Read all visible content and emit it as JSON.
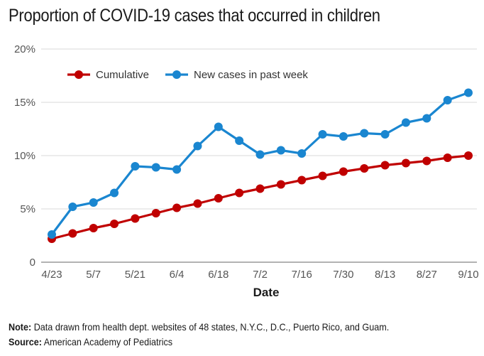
{
  "title": "Proportion of COVID-19 cases that occurred in children",
  "note": {
    "label": "Note:",
    "text": " Data drawn from health dept. websites of 48 states, N.Y.C., D.C., Puerto Rico, and Guam."
  },
  "source": {
    "label": "Source:",
    "text": " American Academy of Pediatrics"
  },
  "chart_data": {
    "type": "line",
    "title": "Proportion of COVID-19 cases that occurred in children",
    "xlabel": "Date",
    "ylabel": "",
    "x": [
      "4/23",
      "4/30",
      "5/7",
      "5/14",
      "5/21",
      "5/28",
      "6/4",
      "6/11",
      "6/18",
      "6/25",
      "7/2",
      "7/9",
      "7/16",
      "7/23",
      "7/30",
      "8/6",
      "8/13",
      "8/20",
      "8/27",
      "9/3",
      "9/10"
    ],
    "x_tick_labels": [
      "4/23",
      "5/7",
      "5/21",
      "6/4",
      "6/18",
      "7/2",
      "7/16",
      "7/30",
      "8/13",
      "8/27",
      "9/10"
    ],
    "y_tick_labels": [
      "0",
      "5%",
      "10%",
      "15%",
      "20%"
    ],
    "ylim": [
      0,
      20
    ],
    "grid": "horizontal",
    "legend_position": "top-left",
    "series": [
      {
        "name": "Cumulative",
        "color": "#c00000",
        "values": [
          2.2,
          2.7,
          3.2,
          3.6,
          4.1,
          4.6,
          5.1,
          5.5,
          6.0,
          6.5,
          6.9,
          7.3,
          7.7,
          8.1,
          8.5,
          8.8,
          9.1,
          9.3,
          9.5,
          9.8,
          10.0
        ]
      },
      {
        "name": "New cases in past week",
        "color": "#1a86d0",
        "values": [
          2.6,
          5.2,
          5.6,
          6.5,
          9.0,
          8.9,
          8.7,
          10.9,
          12.7,
          11.4,
          10.1,
          10.5,
          10.2,
          12.0,
          11.8,
          12.1,
          12.0,
          13.1,
          13.5,
          15.2,
          15.9
        ]
      }
    ]
  }
}
